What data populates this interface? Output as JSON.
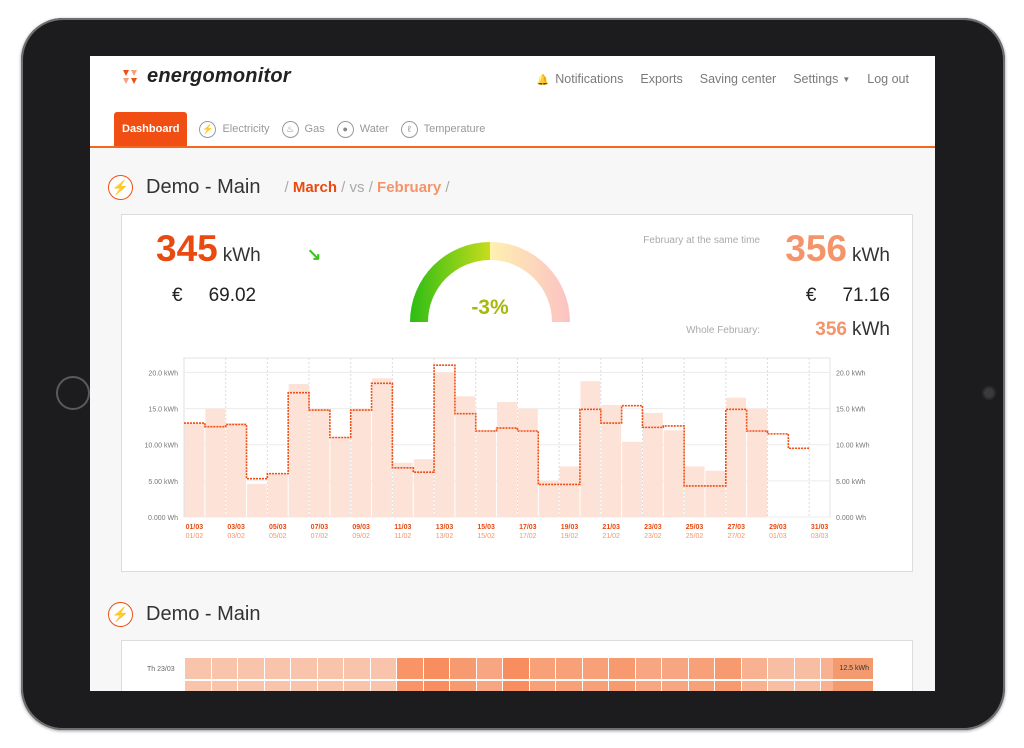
{
  "app": {
    "brand": "energomonitor",
    "nav": [
      "Notifications",
      "Exports",
      "Saving center",
      "Settings",
      "Log out"
    ],
    "tabs": [
      "Dashboard",
      "Electricity",
      "Gas",
      "Water",
      "Temperature"
    ]
  },
  "section1": {
    "title": "Demo - Main",
    "month": "March",
    "vs": "vs",
    "compare_month": "February",
    "current_kwh": "345",
    "unit": "kWh",
    "current_cost": "69.02",
    "currency": "€",
    "change_pct": "-3%",
    "gauge_change_value": -0.03,
    "same_time_label": "February at the same time",
    "same_time_kwh": "356",
    "same_time_cost": "71.16",
    "whole_label": "Whole February:",
    "whole_kwh": "356"
  },
  "chart_data": {
    "type": "bar",
    "y_ticks": [
      "0.000 Wh",
      "5.00 kWh",
      "10.00 kWh",
      "15.0 kWh",
      "20.0 kWh"
    ],
    "ylim": [
      0,
      22
    ],
    "x_ticks_current": [
      "01/03",
      "03/03",
      "05/03",
      "07/03",
      "09/03",
      "11/03",
      "13/03",
      "15/03",
      "17/03",
      "19/03",
      "21/03",
      "23/03",
      "25/03",
      "27/03",
      "29/03",
      "31/03"
    ],
    "x_ticks_previous": [
      "01/02",
      "03/02",
      "05/02",
      "07/02",
      "09/02",
      "11/02",
      "13/02",
      "15/02",
      "17/02",
      "19/02",
      "21/02",
      "23/02",
      "25/02",
      "27/02",
      "01/03",
      "03/03"
    ],
    "series": [
      {
        "name": "March",
        "values": [
          13.0,
          12.5,
          12.8,
          5.3,
          6.0,
          17.2,
          14.8,
          11.0,
          14.8,
          18.5,
          6.8,
          6.2,
          21.0,
          14.3,
          11.9,
          12.3,
          11.9,
          4.5,
          4.5,
          14.9,
          13.0,
          15.4,
          12.4,
          12.6,
          4.3,
          4.3,
          14.9,
          11.9,
          11.5,
          9.5
        ]
      },
      {
        "name": "February",
        "values": [
          13.0,
          15.0,
          13.0,
          4.6,
          6.0,
          18.4,
          15.0,
          11.0,
          15.0,
          19.2,
          7.5,
          8.0,
          20.0,
          16.7,
          12.0,
          15.9,
          15.0,
          5.0,
          7.0,
          18.8,
          15.5,
          10.4,
          14.4,
          12.0,
          7.0,
          6.4,
          16.5,
          15.0
        ]
      }
    ]
  },
  "section2": {
    "title": "Demo - Main",
    "rows": [
      {
        "label": "Th 23/03",
        "total": "12.5 kWh"
      }
    ],
    "cell_levels": [
      0.25,
      0.25,
      0.25,
      0.25,
      0.25,
      0.25,
      0.25,
      0.25,
      0.65,
      0.7,
      0.6,
      0.5,
      0.7,
      0.55,
      0.55,
      0.55,
      0.6,
      0.5,
      0.5,
      0.55,
      0.6,
      0.4,
      0.3,
      0.3,
      0.4
    ]
  },
  "colors": {
    "accent": "#f04e12",
    "compare": "#f4946a",
    "bar": "#fde2d8",
    "green": "#3cc21a",
    "olive": "#a8b80c"
  }
}
